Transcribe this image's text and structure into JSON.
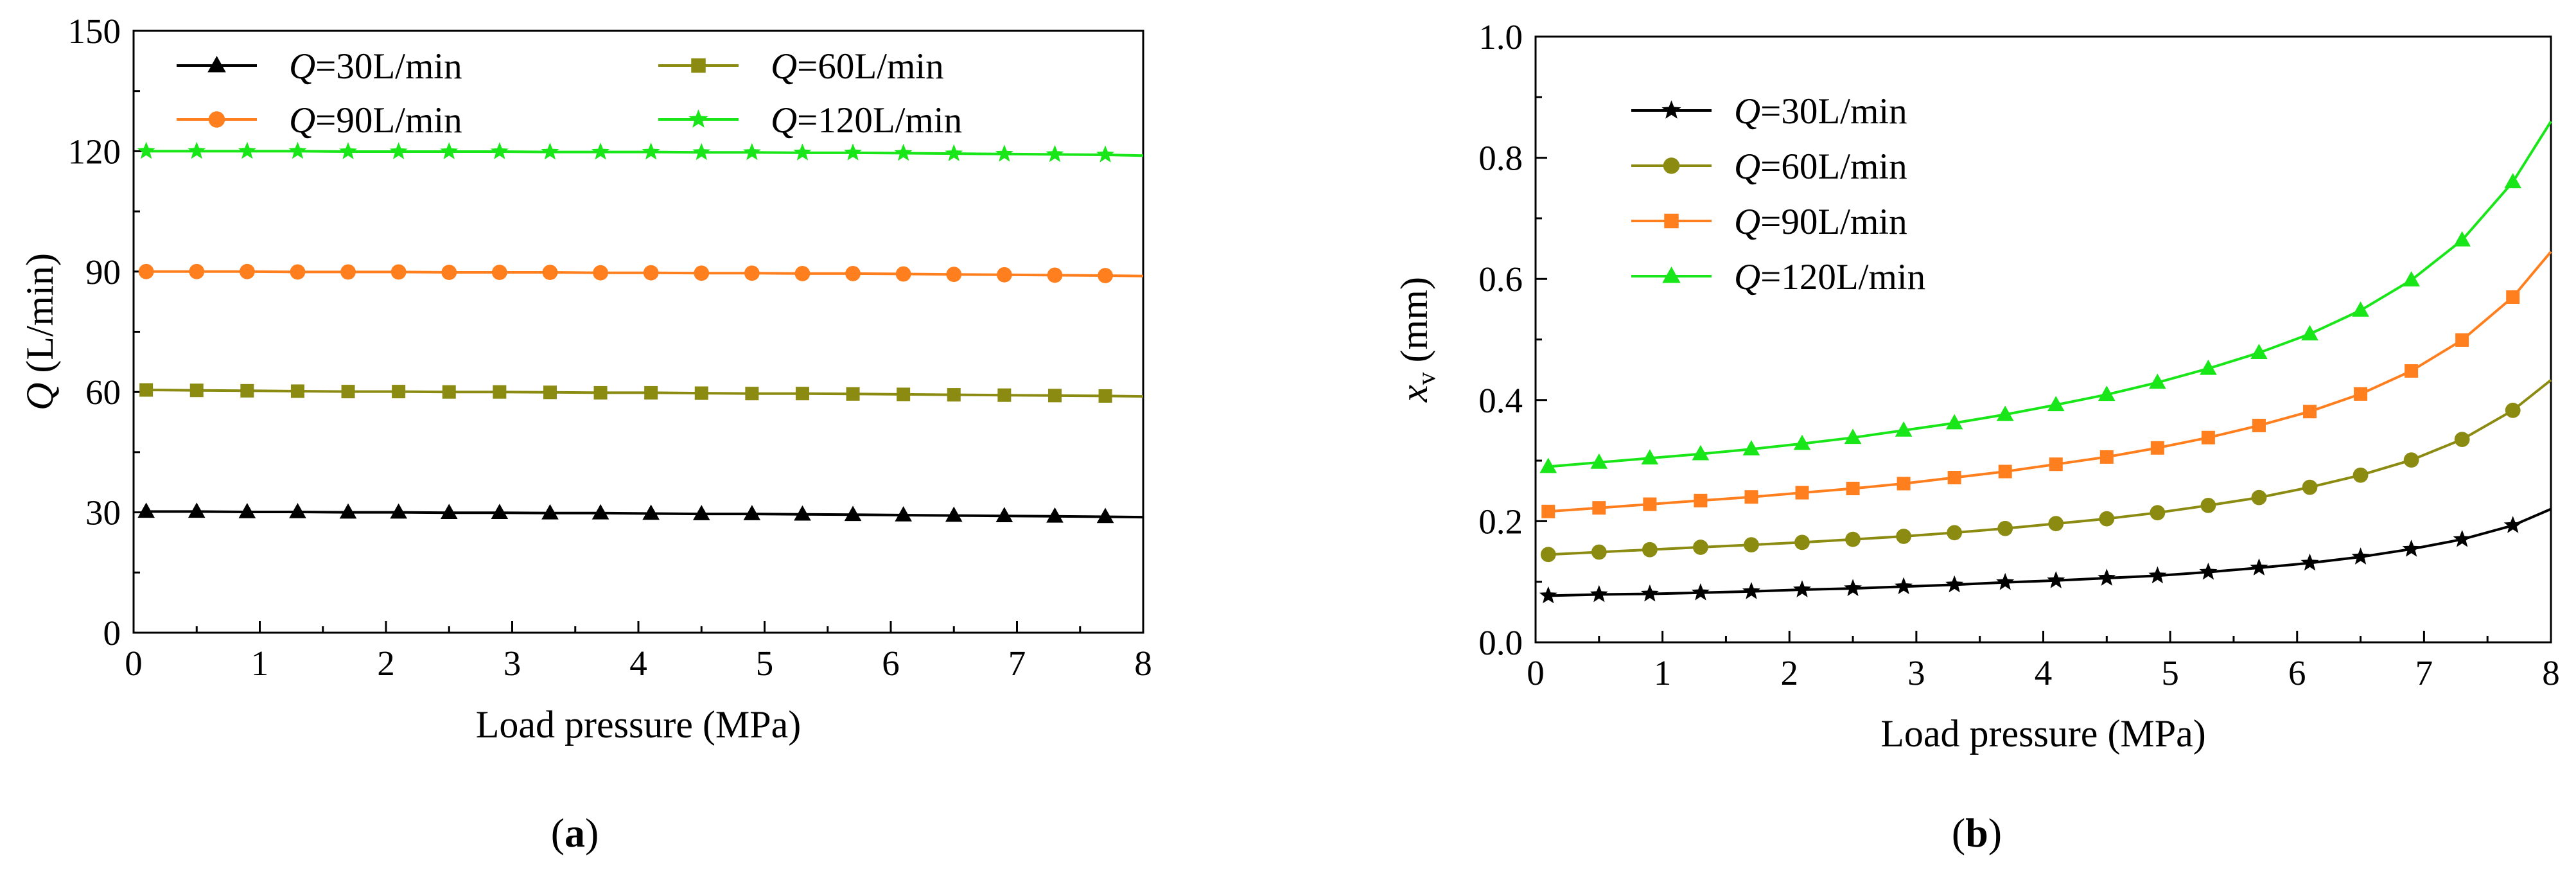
{
  "figure": {
    "panel_labels": [
      {
        "open": "(",
        "letter": "a",
        "close": ")"
      },
      {
        "open": "(",
        "letter": "b",
        "close": ")"
      }
    ]
  },
  "chart_data": [
    {
      "type": "line",
      "panel": "a",
      "xlabel": "Load pressure (MPa)",
      "ylabel": {
        "var": "Q",
        "rest": " (L/min)"
      },
      "xlim": [
        0,
        8
      ],
      "ylim": [
        0,
        150
      ],
      "xticks": [
        0,
        1,
        2,
        3,
        4,
        5,
        6,
        7,
        8
      ],
      "yticks": [
        0,
        30,
        60,
        90,
        120,
        150
      ],
      "legend_columns": 2,
      "legend_position": "top",
      "series": [
        {
          "name": "Q=30L/min",
          "var": "Q",
          "rest": "=30L/min",
          "color": "#000000",
          "marker": "triangle",
          "x": [
            0.1,
            0.5,
            0.9,
            1.3,
            1.7,
            2.1,
            2.5,
            2.9,
            3.3,
            3.7,
            4.1,
            4.5,
            4.9,
            5.3,
            5.7,
            6.1,
            6.5,
            6.9,
            7.3,
            7.7,
            8.0
          ],
          "y": [
            30.2,
            30.2,
            30.1,
            30.1,
            30.0,
            30.0,
            29.9,
            29.9,
            29.8,
            29.8,
            29.7,
            29.6,
            29.6,
            29.5,
            29.4,
            29.3,
            29.2,
            29.1,
            29.0,
            28.9,
            28.8
          ]
        },
        {
          "name": "Q=60L/min",
          "var": "Q",
          "rest": "=60L/min",
          "color": "#8b8b12",
          "marker": "square",
          "x": [
            0.1,
            0.5,
            0.9,
            1.3,
            1.7,
            2.1,
            2.5,
            2.9,
            3.3,
            3.7,
            4.1,
            4.5,
            4.9,
            5.3,
            5.7,
            6.1,
            6.5,
            6.9,
            7.3,
            7.7,
            8.0
          ],
          "y": [
            60.5,
            60.4,
            60.3,
            60.2,
            60.1,
            60.1,
            60.0,
            60.0,
            59.9,
            59.8,
            59.8,
            59.7,
            59.6,
            59.6,
            59.5,
            59.4,
            59.3,
            59.2,
            59.1,
            59.0,
            58.9
          ]
        },
        {
          "name": "Q=90L/min",
          "var": "Q",
          "rest": "=90L/min",
          "color": "#ff7f1e",
          "marker": "circle",
          "x": [
            0.1,
            0.5,
            0.9,
            1.3,
            1.7,
            2.1,
            2.5,
            2.9,
            3.3,
            3.7,
            4.1,
            4.5,
            4.9,
            5.3,
            5.7,
            6.1,
            6.5,
            6.9,
            7.3,
            7.7,
            8.0
          ],
          "y": [
            90.0,
            90.0,
            90.0,
            89.9,
            89.9,
            89.9,
            89.8,
            89.8,
            89.8,
            89.7,
            89.7,
            89.6,
            89.6,
            89.5,
            89.5,
            89.4,
            89.3,
            89.2,
            89.1,
            89.0,
            88.9
          ]
        },
        {
          "name": "Q=120L/min",
          "var": "Q",
          "rest": "=120L/min",
          "color": "#19e619",
          "marker": "star",
          "x": [
            0.1,
            0.5,
            0.9,
            1.3,
            1.7,
            2.1,
            2.5,
            2.9,
            3.3,
            3.7,
            4.1,
            4.5,
            4.9,
            5.3,
            5.7,
            6.1,
            6.5,
            6.9,
            7.3,
            7.7,
            8.0
          ],
          "y": [
            120.0,
            120.0,
            120.0,
            120.0,
            119.9,
            119.9,
            119.9,
            119.9,
            119.8,
            119.8,
            119.8,
            119.7,
            119.7,
            119.6,
            119.6,
            119.5,
            119.4,
            119.3,
            119.2,
            119.1,
            118.9
          ]
        }
      ]
    },
    {
      "type": "line",
      "panel": "b",
      "xlabel": "Load pressure (MPa)",
      "ylabel": {
        "var": "x",
        "sub": "v",
        "rest": " (mm)"
      },
      "xlim": [
        0,
        8
      ],
      "ylim": [
        0.0,
        1.0
      ],
      "xticks": [
        0,
        1,
        2,
        3,
        4,
        5,
        6,
        7,
        8
      ],
      "yticks": [
        0.0,
        0.2,
        0.4,
        0.6,
        0.8,
        1.0
      ],
      "tick_labels_y": [
        "0.0",
        "0.2",
        "0.4",
        "0.6",
        "0.8",
        "1.0"
      ],
      "legend_columns": 1,
      "legend_position": "top-left",
      "series": [
        {
          "name": "Q=30L/min",
          "var": "Q",
          "rest": "=30L/min",
          "color": "#000000",
          "marker": "star",
          "x": [
            0.1,
            0.5,
            0.9,
            1.3,
            1.7,
            2.1,
            2.5,
            2.9,
            3.3,
            3.7,
            4.1,
            4.5,
            4.9,
            5.3,
            5.7,
            6.1,
            6.5,
            6.9,
            7.3,
            7.7,
            8.0
          ],
          "y": [
            0.077,
            0.079,
            0.08,
            0.082,
            0.084,
            0.087,
            0.089,
            0.092,
            0.095,
            0.099,
            0.102,
            0.106,
            0.11,
            0.116,
            0.123,
            0.131,
            0.141,
            0.154,
            0.17,
            0.193,
            0.22
          ]
        },
        {
          "name": "Q=60L/min",
          "var": "Q",
          "rest": "=60L/min",
          "color": "#8b8b12",
          "marker": "circle",
          "x": [
            0.1,
            0.5,
            0.9,
            1.3,
            1.7,
            2.1,
            2.5,
            2.9,
            3.3,
            3.7,
            4.1,
            4.5,
            4.9,
            5.3,
            5.7,
            6.1,
            6.5,
            6.9,
            7.3,
            7.7,
            8.0
          ],
          "y": [
            0.145,
            0.149,
            0.153,
            0.157,
            0.161,
            0.165,
            0.17,
            0.175,
            0.181,
            0.188,
            0.196,
            0.204,
            0.214,
            0.226,
            0.239,
            0.256,
            0.276,
            0.301,
            0.335,
            0.383,
            0.433
          ]
        },
        {
          "name": "Q=90L/min",
          "var": "Q",
          "rest": "=90L/min",
          "color": "#ff7f1e",
          "marker": "square",
          "x": [
            0.1,
            0.5,
            0.9,
            1.3,
            1.7,
            2.1,
            2.5,
            2.9,
            3.3,
            3.7,
            4.1,
            4.5,
            4.9,
            5.3,
            5.7,
            6.1,
            6.5,
            6.9,
            7.3,
            7.7,
            8.0
          ],
          "y": [
            0.216,
            0.222,
            0.228,
            0.234,
            0.24,
            0.247,
            0.254,
            0.262,
            0.272,
            0.282,
            0.294,
            0.306,
            0.321,
            0.338,
            0.358,
            0.381,
            0.41,
            0.448,
            0.499,
            0.57,
            0.645
          ]
        },
        {
          "name": "Q=120L/min",
          "var": "Q",
          "rest": "=120L/min",
          "color": "#19e619",
          "marker": "triangle",
          "x": [
            0.1,
            0.5,
            0.9,
            1.3,
            1.7,
            2.1,
            2.5,
            2.9,
            3.3,
            3.7,
            4.1,
            4.5,
            4.9,
            5.3,
            5.7,
            6.1,
            6.5,
            6.9,
            7.3,
            7.7,
            8.0
          ],
          "y": [
            0.29,
            0.297,
            0.304,
            0.311,
            0.319,
            0.328,
            0.338,
            0.35,
            0.362,
            0.376,
            0.392,
            0.409,
            0.429,
            0.452,
            0.478,
            0.509,
            0.548,
            0.598,
            0.664,
            0.76,
            0.86
          ]
        }
      ]
    }
  ]
}
